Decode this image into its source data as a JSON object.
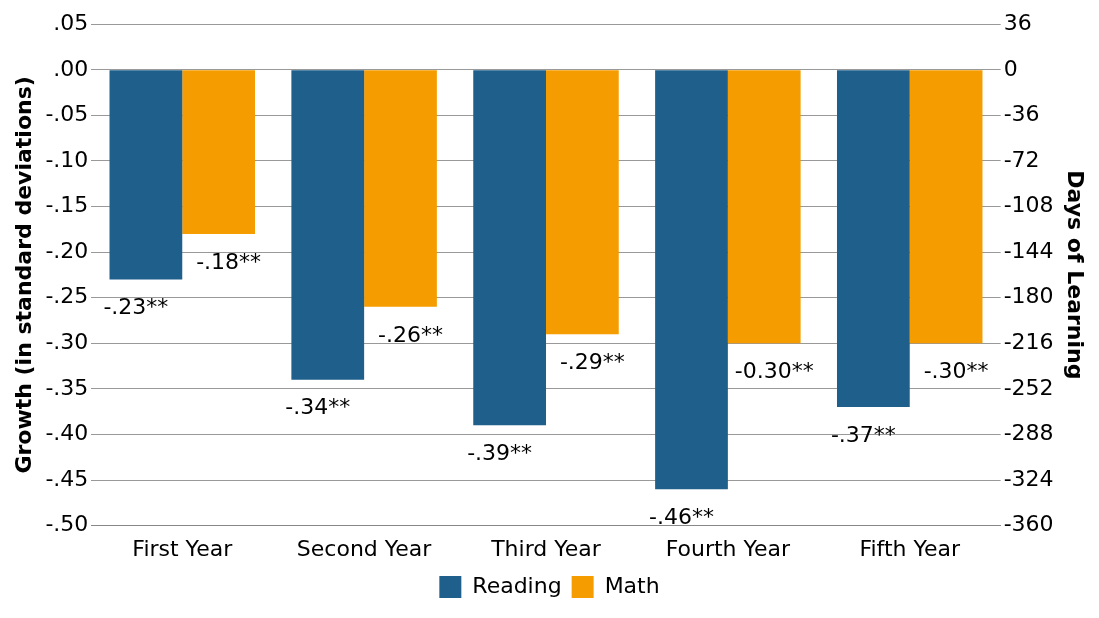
{
  "chart_data": {
    "type": "bar",
    "ylabel": "Growth (in standard deviations)",
    "y2label": "Days of Learning",
    "categories": [
      "First Year",
      "Second Year",
      "Third Year",
      "Fourth Year",
      "Fifth Year"
    ],
    "series": [
      {
        "name": "Reading",
        "color": "#1f5f8b",
        "values": [
          -0.23,
          -0.34,
          -0.39,
          -0.46,
          -0.37
        ],
        "value_labels": [
          "-.23**",
          "-.34**",
          "-.39**",
          "-.46**",
          "-.37**"
        ]
      },
      {
        "name": "Math",
        "color": "#f59c00",
        "values": [
          -0.18,
          -0.26,
          -0.29,
          -0.3,
          -0.3
        ],
        "value_labels": [
          "-.18**",
          "-.26**",
          "-.29**",
          "-0.30**",
          "-.30**"
        ]
      }
    ],
    "ylim": [
      -0.5,
      0.05
    ],
    "yticks": [
      {
        "value": 0.05,
        "label": ".05"
      },
      {
        "value": 0,
        "label": ".00"
      },
      {
        "value": -0.05,
        "label": "-.05"
      },
      {
        "value": -0.1,
        "label": "-.10"
      },
      {
        "value": -0.15,
        "label": "-.15"
      },
      {
        "value": -0.2,
        "label": "-.20"
      },
      {
        "value": -0.25,
        "label": "-.25"
      },
      {
        "value": -0.3,
        "label": "-.30"
      },
      {
        "value": -0.35,
        "label": "-.35"
      },
      {
        "value": -0.4,
        "label": "-.40"
      },
      {
        "value": -0.45,
        "label": "-.45"
      },
      {
        "value": -0.5,
        "label": "-.50"
      }
    ],
    "y2lim": [
      -360,
      36
    ],
    "y2ticks": [
      36,
      0,
      -36,
      -72,
      -108,
      -144,
      -180,
      -216,
      -252,
      -288,
      -324,
      -360
    ],
    "grid": "y",
    "legend": "bottom"
  }
}
